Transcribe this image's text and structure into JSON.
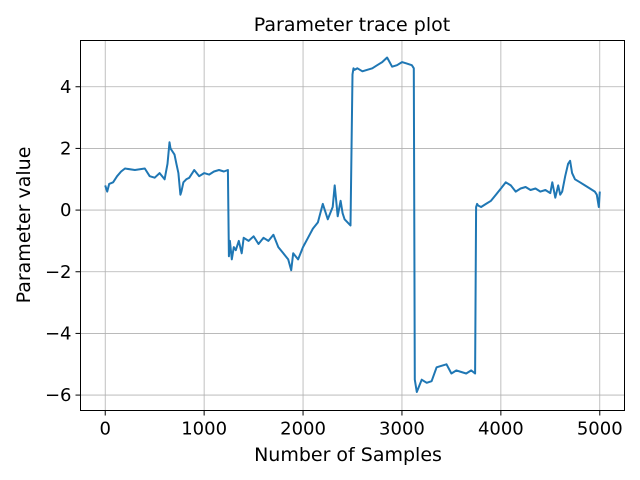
{
  "chart_data": {
    "type": "line",
    "title": "Parameter trace plot",
    "xlabel": "Number of Samples",
    "ylabel": "Parameter value",
    "xlim": [
      -250,
      5250
    ],
    "ylim": [
      -6.5,
      5.5
    ],
    "grid": true,
    "legend": "none",
    "x_ticks": [
      0,
      1000,
      2000,
      3000,
      4000,
      5000
    ],
    "x_tick_labels": [
      "0",
      "1000",
      "2000",
      "3000",
      "4000",
      "5000"
    ],
    "y_ticks": [
      -6,
      -4,
      -2,
      0,
      2,
      4
    ],
    "y_tick_labels": [
      "−6",
      "−4",
      "−2",
      "0",
      "2",
      "4"
    ],
    "series": [
      {
        "color": "#1f77b4",
        "x": [
          0,
          20,
          40,
          80,
          120,
          160,
          200,
          300,
          400,
          450,
          500,
          550,
          600,
          630,
          650,
          660,
          680,
          700,
          720,
          740,
          760,
          770,
          790,
          820,
          850,
          880,
          900,
          950,
          1000,
          1050,
          1100,
          1150,
          1200,
          1240,
          1250,
          1260,
          1280,
          1300,
          1320,
          1350,
          1380,
          1400,
          1450,
          1500,
          1550,
          1600,
          1650,
          1700,
          1750,
          1800,
          1850,
          1880,
          1900,
          1950,
          2000,
          2050,
          2100,
          2150,
          2200,
          2250,
          2300,
          2320,
          2350,
          2380,
          2400,
          2420,
          2450,
          2480,
          2500,
          2510,
          2520,
          2550,
          2600,
          2650,
          2700,
          2750,
          2800,
          2850,
          2900,
          2950,
          3000,
          3050,
          3100,
          3110,
          3120,
          3130,
          3150,
          3200,
          3250,
          3300,
          3350,
          3400,
          3450,
          3500,
          3550,
          3600,
          3650,
          3700,
          3740,
          3750,
          3760,
          3770,
          3800,
          3850,
          3900,
          3950,
          4000,
          4050,
          4100,
          4150,
          4200,
          4250,
          4300,
          4350,
          4400,
          4450,
          4500,
          4520,
          4550,
          4580,
          4600,
          4620,
          4650,
          4680,
          4700,
          4720,
          4750,
          4800,
          4850,
          4900,
          4950,
          4970,
          4980,
          4990,
          5000
        ],
        "values": [
          0.8,
          0.6,
          0.85,
          0.9,
          1.1,
          1.25,
          1.35,
          1.3,
          1.35,
          1.1,
          1.05,
          1.2,
          1.0,
          1.5,
          2.2,
          2.0,
          1.9,
          1.8,
          1.5,
          1.2,
          0.5,
          0.6,
          0.9,
          1.0,
          1.05,
          1.2,
          1.3,
          1.1,
          1.2,
          1.15,
          1.25,
          1.3,
          1.25,
          1.3,
          -1.5,
          -1.0,
          -1.6,
          -1.2,
          -1.3,
          -1.0,
          -1.4,
          -0.9,
          -1.0,
          -0.85,
          -1.1,
          -0.9,
          -1.0,
          -0.8,
          -1.2,
          -1.4,
          -1.6,
          -1.95,
          -1.4,
          -1.6,
          -1.2,
          -0.9,
          -0.6,
          -0.4,
          0.2,
          -0.3,
          0.1,
          0.8,
          -0.2,
          0.3,
          -0.1,
          -0.3,
          -0.4,
          -0.5,
          4.4,
          4.6,
          4.55,
          4.6,
          4.5,
          4.55,
          4.6,
          4.7,
          4.8,
          4.95,
          4.65,
          4.7,
          4.8,
          4.75,
          4.7,
          4.65,
          4.6,
          -5.5,
          -5.9,
          -5.5,
          -5.6,
          -5.55,
          -5.1,
          -5.05,
          -5.0,
          -5.3,
          -5.2,
          -5.25,
          -5.3,
          -5.2,
          -5.3,
          0.1,
          0.2,
          0.15,
          0.1,
          0.2,
          0.3,
          0.5,
          0.7,
          0.9,
          0.8,
          0.6,
          0.7,
          0.75,
          0.65,
          0.7,
          0.6,
          0.65,
          0.55,
          0.9,
          0.4,
          0.8,
          0.5,
          0.6,
          1.1,
          1.5,
          1.6,
          1.2,
          1.0,
          0.9,
          0.8,
          0.7,
          0.6,
          0.5,
          0.3,
          0.1,
          0.6
        ]
      }
    ]
  }
}
